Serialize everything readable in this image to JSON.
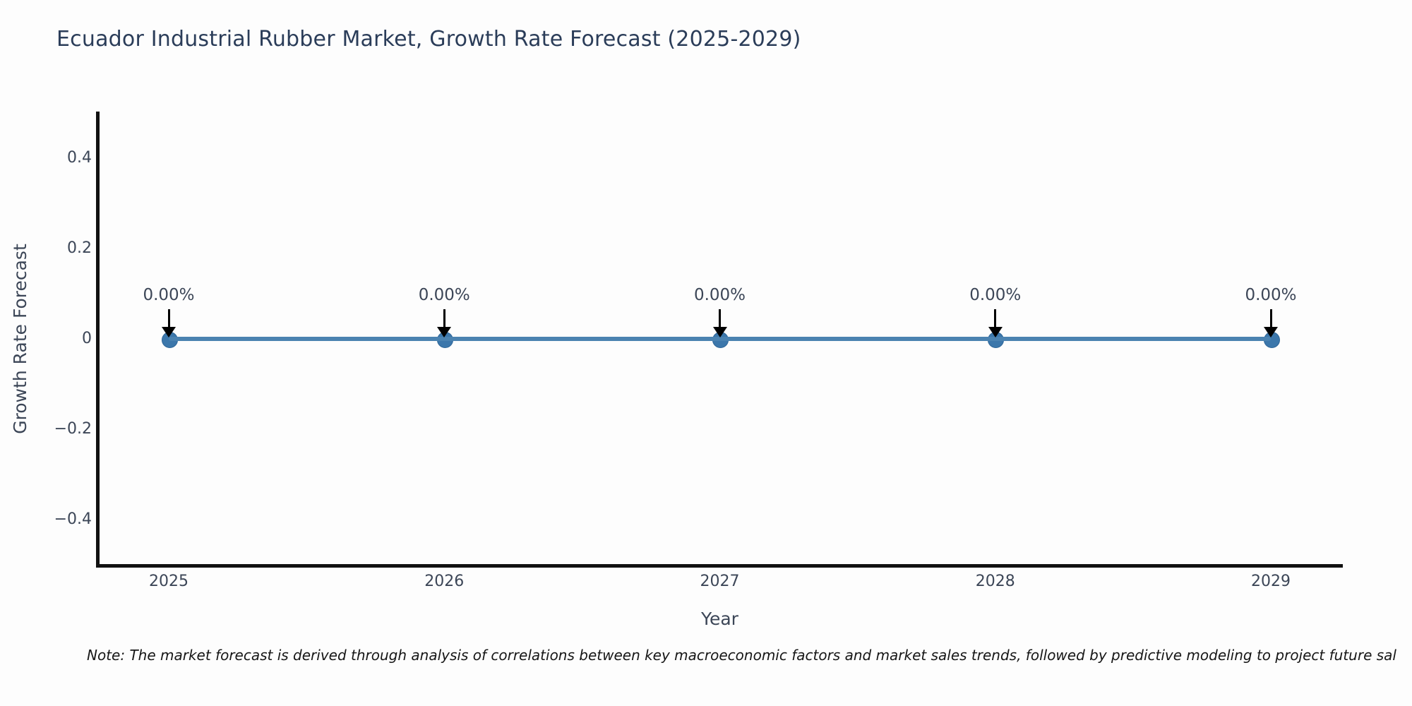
{
  "title": "Ecuador Industrial Rubber Market, Growth Rate Forecast (2025-2029)",
  "note": "Note: The market forecast is derived through analysis of correlations between key macroeconomic factors and market sales trends, followed by predictive modeling to project future sal",
  "chart_data": {
    "type": "line",
    "title": "Ecuador Industrial Rubber Market, Growth Rate Forecast (2025-2029)",
    "x": [
      2025,
      2026,
      2027,
      2028,
      2029
    ],
    "categories": [
      "2025",
      "2026",
      "2027",
      "2028",
      "2029"
    ],
    "series": [
      {
        "name": "Growth Rate Forecast",
        "values": [
          0,
          0,
          0,
          0,
          0
        ]
      }
    ],
    "point_labels": [
      "0.00%",
      "0.00%",
      "0.00%",
      "0.00%",
      "0.00%"
    ],
    "xlabel": "Year",
    "ylabel": "Growth Rate Forecast",
    "ylim": [
      -0.5,
      0.5
    ],
    "yticks": [
      0.4,
      0.2,
      0,
      -0.2,
      -0.4
    ],
    "ytick_labels": [
      "0.4",
      "0.2",
      "0",
      "−0.2",
      "−0.4"
    ],
    "grid": false,
    "legend_position": "none",
    "annotations_have_arrows": true
  },
  "colors": {
    "line": "#4b83b1",
    "marker": "#3c77ab",
    "marker_edge": "#2e6699",
    "axis": "#111111",
    "title_text": "#2b3d59",
    "tick_text": "#3c4657",
    "annotation_text": "#3c4657",
    "arrow": "#000000",
    "note_text": "#161616",
    "background": "#fdfdfd"
  }
}
